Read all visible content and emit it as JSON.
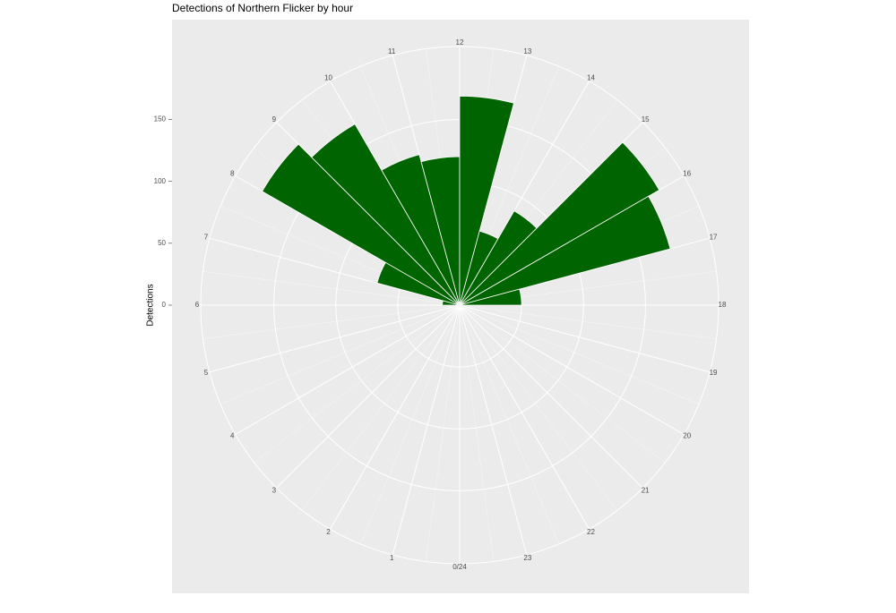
{
  "chart_data": {
    "type": "polar-bar",
    "title": "Detections of Northern Flicker by hour",
    "y_label": "Detections",
    "categories": [
      "0/24",
      "1",
      "2",
      "3",
      "4",
      "5",
      "6",
      "7",
      "8",
      "9",
      "10",
      "11",
      "12",
      "13",
      "14",
      "15",
      "16",
      "17",
      "18",
      "19",
      "20",
      "21",
      "22",
      "23"
    ],
    "values": [
      0,
      0,
      0,
      0,
      0,
      0,
      14,
      69,
      184,
      169,
      126,
      120,
      169,
      62,
      88,
      186,
      176,
      50,
      0,
      0,
      0,
      0,
      0,
      0
    ],
    "color": "#006400",
    "ylim": [
      0,
      209
    ],
    "yticks": [
      0,
      50,
      100,
      150
    ],
    "grid": true
  }
}
